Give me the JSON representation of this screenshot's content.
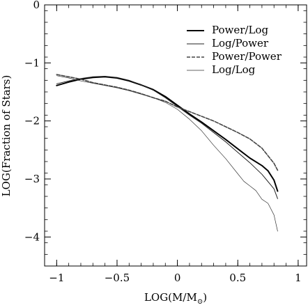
{
  "chart_data": {
    "type": "line",
    "xlabel": "LOG(M/M",
    "xlabel_subscript": "⊙",
    "xlabel_close": ")",
    "ylabel": "LOG(Fraction of Stars)",
    "xlim": [
      -1.1,
      1.07
    ],
    "ylim": [
      -4.5,
      0
    ],
    "x_ticks": [
      -1,
      -0.5,
      0,
      0.5,
      1
    ],
    "x_tick_labels": [
      "−1",
      "−0.5",
      "0",
      "0.5",
      "1"
    ],
    "y_ticks": [
      -4,
      -3,
      -2,
      -1,
      0
    ],
    "y_tick_labels": [
      "−4",
      "−3",
      "−2",
      "−1",
      "0"
    ],
    "grid": false,
    "legend_position": "top-right",
    "series": [
      {
        "name": "Power/Log",
        "color": "#000000",
        "stroke_width": 2.0,
        "dash": "",
        "x": [
          -1.0,
          -0.9,
          -0.8,
          -0.7,
          -0.6,
          -0.5,
          -0.4,
          -0.3,
          -0.2,
          -0.1,
          0.0,
          0.1,
          0.2,
          0.3,
          0.4,
          0.5,
          0.6,
          0.7,
          0.75,
          0.8,
          0.83
        ],
        "y": [
          -1.39,
          -1.33,
          -1.28,
          -1.25,
          -1.24,
          -1.26,
          -1.31,
          -1.38,
          -1.46,
          -1.58,
          -1.73,
          -1.88,
          -2.02,
          -2.17,
          -2.32,
          -2.48,
          -2.64,
          -2.77,
          -2.86,
          -3.02,
          -3.21
        ]
      },
      {
        "name": "Log/Power",
        "color": "#222222",
        "stroke_width": 1.0,
        "dash": "",
        "x": [
          -1.0,
          -0.9,
          -0.8,
          -0.7,
          -0.6,
          -0.5,
          -0.4,
          -0.3,
          -0.2,
          -0.1,
          0.0,
          0.1,
          0.2,
          0.3,
          0.4,
          0.5,
          0.6,
          0.7,
          0.8,
          0.83
        ],
        "y": [
          -1.36,
          -1.31,
          -1.27,
          -1.24,
          -1.23,
          -1.25,
          -1.3,
          -1.38,
          -1.47,
          -1.6,
          -1.75,
          -1.9,
          -2.04,
          -2.2,
          -2.36,
          -2.54,
          -2.72,
          -2.92,
          -3.17,
          -3.34
        ]
      },
      {
        "name": "Power/Power",
        "color": "#444444",
        "stroke_width": 1.6,
        "dash": "5,2",
        "x": [
          -1.0,
          -0.9,
          -0.8,
          -0.7,
          -0.6,
          -0.5,
          -0.4,
          -0.3,
          -0.2,
          -0.1,
          0.0,
          0.1,
          0.2,
          0.3,
          0.4,
          0.5,
          0.6,
          0.7,
          0.8,
          0.83
        ],
        "y": [
          -1.2,
          -1.24,
          -1.28,
          -1.34,
          -1.38,
          -1.42,
          -1.47,
          -1.53,
          -1.6,
          -1.66,
          -1.76,
          -1.84,
          -1.92,
          -2.0,
          -2.1,
          -2.2,
          -2.31,
          -2.47,
          -2.73,
          -2.85
        ]
      },
      {
        "name": "Log/Log",
        "color": "#333333",
        "stroke_width": 0.7,
        "dash": "",
        "x": [
          -1.0,
          -0.9,
          -0.8,
          -0.7,
          -0.6,
          -0.5,
          -0.4,
          -0.3,
          -0.2,
          -0.1,
          0.0,
          0.1,
          0.2,
          0.3,
          0.4,
          0.5,
          0.55,
          0.6,
          0.65,
          0.7,
          0.75,
          0.8,
          0.83
        ],
        "y": [
          -1.22,
          -1.26,
          -1.31,
          -1.35,
          -1.39,
          -1.43,
          -1.48,
          -1.54,
          -1.6,
          -1.68,
          -1.8,
          -1.97,
          -2.17,
          -2.42,
          -2.65,
          -2.91,
          -3.04,
          -3.12,
          -3.2,
          -3.35,
          -3.42,
          -3.62,
          -3.9
        ]
      }
    ]
  }
}
